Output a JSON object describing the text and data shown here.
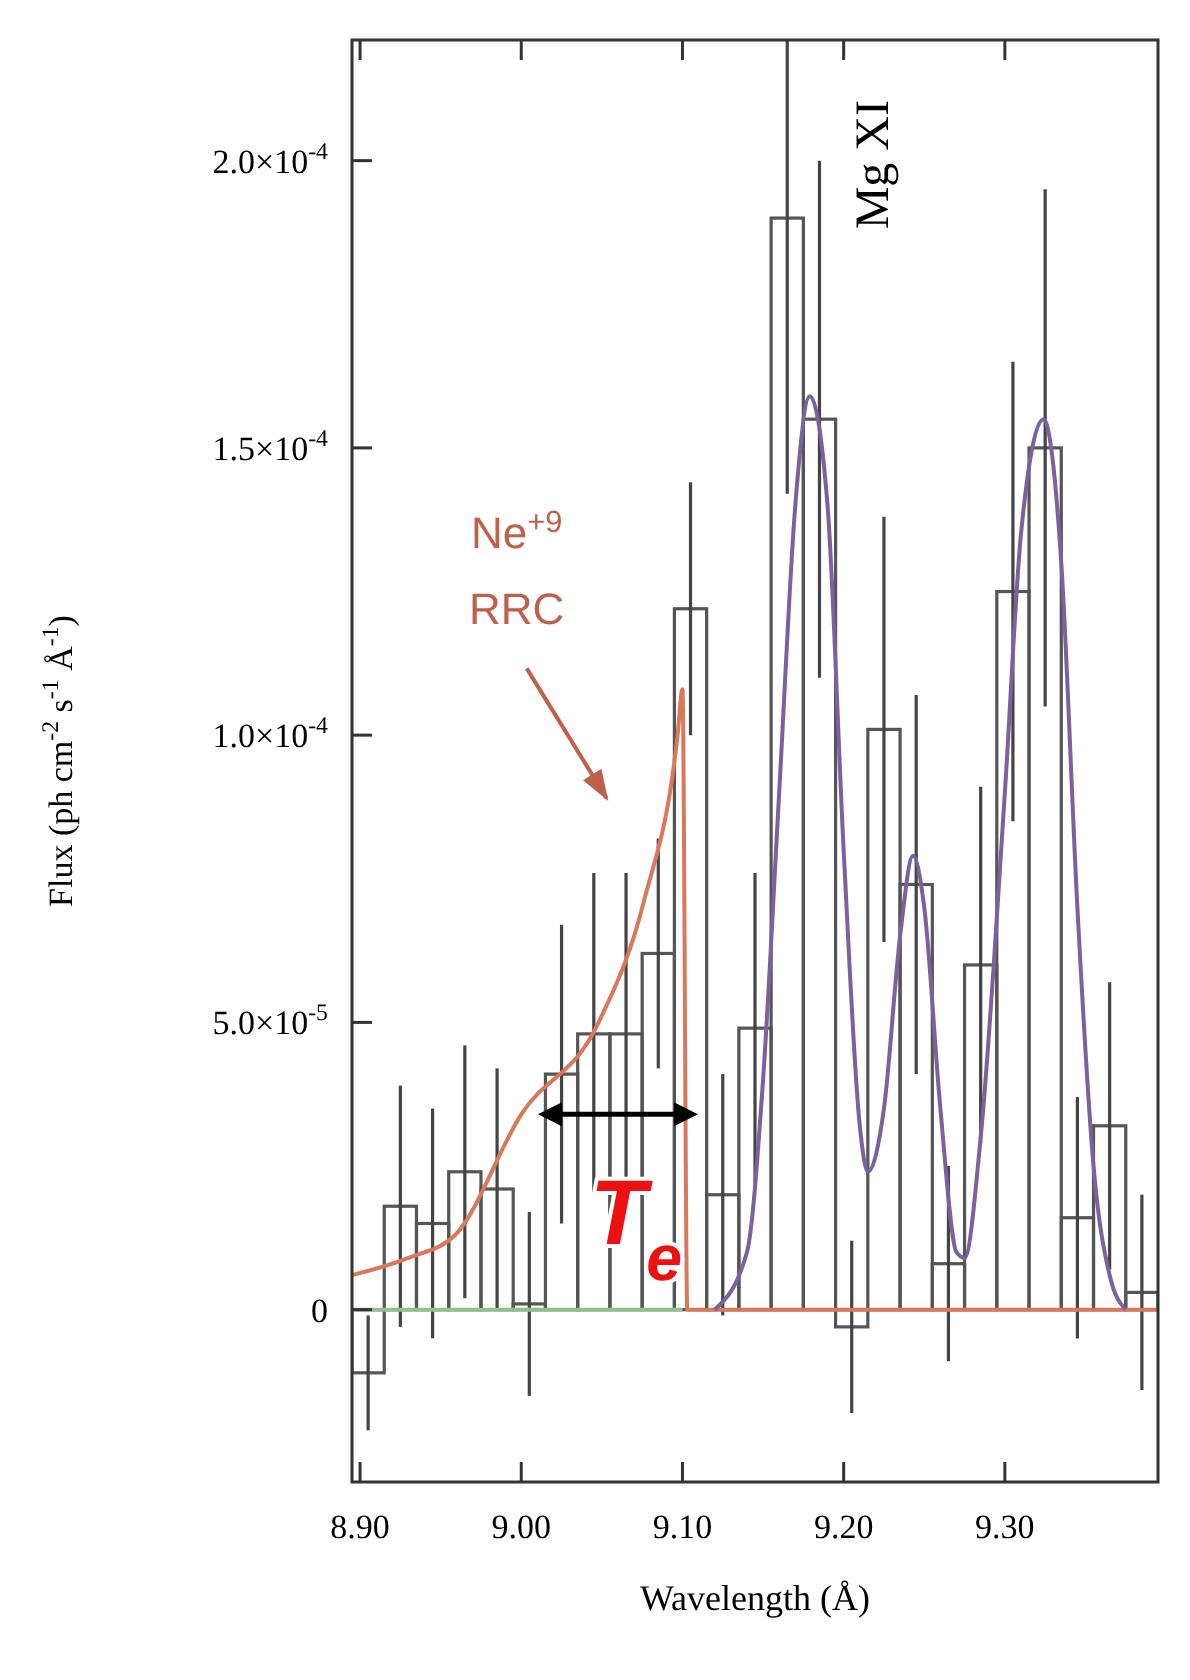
{
  "chart_data": {
    "type": "histogram",
    "xlabel": "Wavelength (Å)",
    "ylabel": "Flux (ph cm$^{-2}$ s$^{-1}$ Å$^{-1}$)",
    "xlim": [
      8.895,
      9.395
    ],
    "ylim": [
      -3e-05,
      0.000221
    ],
    "xticks": [
      {
        "value": 8.9,
        "label": "8.90"
      },
      {
        "value": 9.0,
        "label": "9.00"
      },
      {
        "value": 9.1,
        "label": "9.10"
      },
      {
        "value": 9.2,
        "label": "9.20"
      },
      {
        "value": 9.3,
        "label": "9.30"
      }
    ],
    "yticks": [
      {
        "value": 0,
        "label": "0"
      },
      {
        "value": 5e-05,
        "label": "5.0×10$^{-5}$"
      },
      {
        "value": 0.0001,
        "label": "1.0×10$^{-4}$"
      },
      {
        "value": 0.00015,
        "label": "1.5×10$^{-4}$"
      },
      {
        "value": 0.0002,
        "label": "2.0×10$^{-4}$"
      }
    ],
    "grid": false,
    "series": [
      {
        "color": "#555555",
        "bins": [
          8.895,
          8.915,
          8.935,
          8.955,
          8.975,
          8.995,
          9.015,
          9.035,
          9.055,
          9.075,
          9.095,
          9.115,
          9.135,
          9.155,
          9.175,
          9.195,
          9.215,
          9.235,
          9.255,
          9.275,
          9.295,
          9.315,
          9.335,
          9.355,
          9.375,
          9.395
        ],
        "values": [
          -1.1e-05,
          1.8e-05,
          1.5e-05,
          2.4e-05,
          2.1e-05,
          1e-06,
          4.1e-05,
          4.8e-05,
          4.8e-05,
          6.2e-05,
          0.000122,
          2e-05,
          4.9e-05,
          0.00019,
          0.000155,
          -3e-06,
          0.000101,
          7.4e-05,
          8e-06,
          6e-05,
          0.000125,
          0.00015,
          1.6e-05,
          3.2e-05,
          3e-06
        ],
        "errors": [
          1e-05,
          2.1e-05,
          2e-05,
          2.2e-05,
          2.1e-05,
          1.6e-05,
          2.6e-05,
          2.8e-05,
          2.8e-05,
          2e-05,
          2.2e-05,
          2.1e-05,
          2.7e-05,
          [
            0.000142,
            0.000221
          ],
          4.5e-05,
          1.5e-05,
          3.7e-05,
          3.3e-05,
          1.7e-05,
          3.1e-05,
          4e-05,
          4.5e-05,
          2.1e-05,
          2.5e-05,
          1.7e-05
        ]
      },
      {
        "type": "line",
        "color": "#8fc08f",
        "x": [
          8.895,
          9.1
        ],
        "values": [
          0,
          0
        ]
      },
      {
        "type": "line",
        "color": "#d9785a",
        "x": [
          8.895,
          8.93,
          8.959,
          9.0,
          9.048,
          9.076,
          9.097,
          9.1,
          9.103,
          9.395
        ],
        "values": [
          6e-06,
          9e-06,
          1.3e-05,
          3.4e-05,
          5e-05,
          7.1e-05,
          0.0001,
          0.000108,
          0,
          0
        ]
      },
      {
        "type": "line",
        "color": "#7a62a0",
        "x": [
          9.12,
          9.14,
          9.15,
          9.16,
          9.17,
          9.179,
          9.19,
          9.2,
          9.21,
          9.215,
          9.225,
          9.235,
          9.243,
          9.25,
          9.26,
          9.27,
          9.275,
          9.285,
          9.3,
          9.31,
          9.324,
          9.335,
          9.345,
          9.355,
          9.365,
          9.375
        ],
        "values": [
          0,
          1e-05,
          4e-05,
          9e-05,
          0.00014,
          0.000159,
          0.00014,
          8e-05,
          3.2e-05,
          2.4e-05,
          3.5e-05,
          6.5e-05,
          7.9e-05,
          7e-05,
          3.5e-05,
          1e-05,
          9e-06,
          3e-05,
          9e-05,
          0.000135,
          0.000155,
          0.00013,
          7e-05,
          2.5e-05,
          6e-06,
          0
        ]
      }
    ],
    "annotations": [
      "Ne$^{+9}$\nRRC",
      "Mg XI",
      {
        "text": "T$_{e}$",
        "x": 9.06,
        "y": 3.4e-05
      }
    ]
  }
}
